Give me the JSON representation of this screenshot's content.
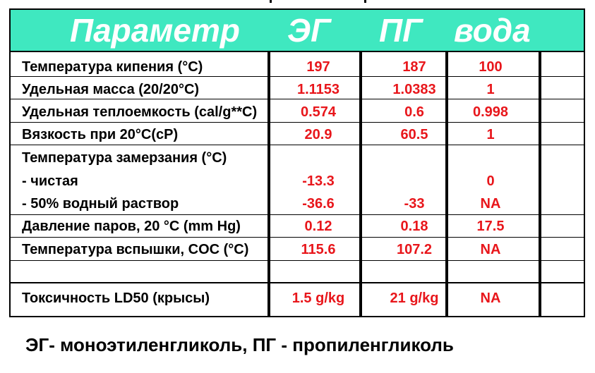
{
  "header": {
    "param": "Параметр",
    "col1": "ЭГ",
    "col2": "ПГ",
    "col3": "вода"
  },
  "rows": [
    {
      "label": "Температура кипения (°C)",
      "v1": "197",
      "v2": "187",
      "v3": "100"
    },
    {
      "label": "Удельная масса (20/20°C)",
      "v1": "1.1153",
      "v2": "1.0383",
      "v3": "1"
    },
    {
      "label": "Удельная теплоемкость (cal/g**C)",
      "v1": "0.574",
      "v2": "0.6",
      "v3": "0.998"
    },
    {
      "label": "Вязкость при 20°C(cP)",
      "v1": "20.9",
      "v2": "60.5",
      "v3": "1"
    },
    {
      "label": "Температура замерзания (°C)",
      "v1": "",
      "v2": "",
      "v3": ""
    },
    {
      "label": "- чистая",
      "v1": "-13.3",
      "v2": "",
      "v3": "0"
    },
    {
      "label": "- 50% водный раствор",
      "v1": "-36.6",
      "v2": "-33",
      "v3": "NA"
    },
    {
      "label": "Давление паров, 20 °C (mm Hg)",
      "v1": "0.12",
      "v2": "0.18",
      "v3": "17.5"
    },
    {
      "label": "Температура вспышки, COC (°C)",
      "v1": "115.6",
      "v2": "107.2",
      "v3": "NA"
    },
    {
      "label": "",
      "v1": "",
      "v2": "",
      "v3": ""
    },
    {
      "label": "Токсичность LD50 (крысы)",
      "v1": "1.5 g/kg",
      "v2": "21 g/kg",
      "v3": "NA"
    }
  ],
  "footer": "ЭГ- моноэтиленгликоль, ПГ - пропиленгликоль",
  "colors": {
    "header_bg": "#3fe8c0",
    "value": "#e8161b"
  }
}
